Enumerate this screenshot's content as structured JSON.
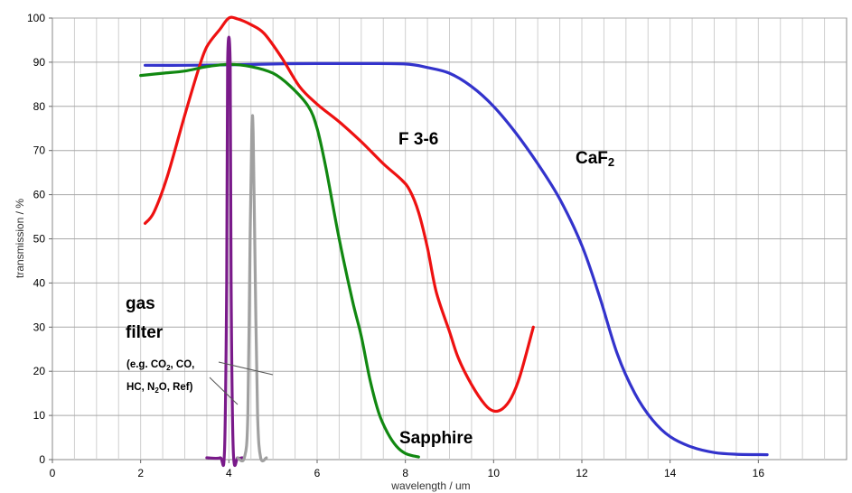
{
  "chart_data": {
    "type": "line",
    "xlabel": "wavelength / um",
    "ylabel": "transmission / %",
    "xlim": [
      0,
      18
    ],
    "ylim": [
      0,
      100
    ],
    "x_ticks": [
      0,
      2,
      4,
      6,
      8,
      10,
      12,
      14,
      16
    ],
    "y_ticks": [
      0,
      10,
      20,
      30,
      40,
      50,
      60,
      70,
      80,
      90,
      100
    ],
    "grid": true,
    "minor_x_grid": true,
    "legend": "none",
    "series": [
      {
        "name": "CaF2",
        "color": "#3333cc",
        "points": [
          [
            2.1,
            89.3
          ],
          [
            3,
            89.3
          ],
          [
            4,
            89.4
          ],
          [
            5,
            89.6
          ],
          [
            6,
            89.7
          ],
          [
            7,
            89.7
          ],
          [
            8,
            89.6
          ],
          [
            8.5,
            88.8
          ],
          [
            9,
            87.5
          ],
          [
            9.5,
            84.5
          ],
          [
            10,
            80
          ],
          [
            10.5,
            74
          ],
          [
            11,
            67
          ],
          [
            11.5,
            59
          ],
          [
            12,
            48.5
          ],
          [
            12.4,
            37
          ],
          [
            12.8,
            24
          ],
          [
            13.2,
            15
          ],
          [
            13.6,
            9
          ],
          [
            14,
            5.2
          ],
          [
            14.5,
            2.8
          ],
          [
            15,
            1.6
          ],
          [
            15.5,
            1.2
          ],
          [
            16.2,
            1.1
          ]
        ]
      },
      {
        "name": "F 3-6",
        "color": "#ee1111",
        "points": [
          [
            2.1,
            53.5
          ],
          [
            2.3,
            56
          ],
          [
            2.6,
            64
          ],
          [
            3,
            78
          ],
          [
            3.3,
            88
          ],
          [
            3.5,
            93.5
          ],
          [
            3.8,
            97.5
          ],
          [
            4,
            100
          ],
          [
            4.2,
            99.8
          ],
          [
            4.5,
            98.5
          ],
          [
            4.8,
            96.5
          ],
          [
            5.2,
            91
          ],
          [
            5.6,
            84.5
          ],
          [
            6,
            80.5
          ],
          [
            6.5,
            76.5
          ],
          [
            7,
            72
          ],
          [
            7.5,
            67
          ],
          [
            7.9,
            63.5
          ],
          [
            8.1,
            61
          ],
          [
            8.3,
            56
          ],
          [
            8.5,
            48
          ],
          [
            8.7,
            38
          ],
          [
            9,
            29
          ],
          [
            9.2,
            23
          ],
          [
            9.5,
            17
          ],
          [
            9.8,
            12.5
          ],
          [
            10,
            11
          ],
          [
            10.2,
            11.5
          ],
          [
            10.4,
            14
          ],
          [
            10.6,
            19
          ],
          [
            10.9,
            30
          ]
        ]
      },
      {
        "name": "Sapphire",
        "color": "#118811",
        "points": [
          [
            2,
            87
          ],
          [
            2.5,
            87.5
          ],
          [
            3,
            88
          ],
          [
            3.5,
            89
          ],
          [
            4,
            89.5
          ],
          [
            4.5,
            89
          ],
          [
            5,
            87.5
          ],
          [
            5.4,
            84.5
          ],
          [
            5.8,
            80
          ],
          [
            6,
            75
          ],
          [
            6.2,
            66
          ],
          [
            6.5,
            50
          ],
          [
            6.8,
            36
          ],
          [
            7,
            28
          ],
          [
            7.2,
            18
          ],
          [
            7.4,
            10.5
          ],
          [
            7.6,
            6
          ],
          [
            7.8,
            3
          ],
          [
            8,
            1.4
          ],
          [
            8.2,
            0.8
          ],
          [
            8.3,
            0.6
          ]
        ]
      },
      {
        "name": "gas filter purple",
        "color": "#7a1a8a",
        "points": [
          [
            3.5,
            0.4
          ],
          [
            3.8,
            0.4
          ],
          [
            3.9,
            2
          ],
          [
            3.95,
            40
          ],
          [
            3.97,
            89.5
          ],
          [
            4.03,
            89.5
          ],
          [
            4.05,
            40
          ],
          [
            4.1,
            2
          ],
          [
            4.2,
            0.4
          ],
          [
            4.3,
            0.4
          ]
        ]
      },
      {
        "name": "gas filter grey",
        "color": "#a0a0a0",
        "points": [
          [
            4.2,
            0.4
          ],
          [
            4.35,
            0.4
          ],
          [
            4.43,
            10
          ],
          [
            4.48,
            50
          ],
          [
            4.52,
            74.5
          ],
          [
            4.55,
            74
          ],
          [
            4.6,
            40
          ],
          [
            4.65,
            10
          ],
          [
            4.72,
            0.4
          ],
          [
            4.85,
            0.4
          ]
        ]
      }
    ],
    "annotations": {
      "caf2_main": "CaF",
      "caf2_sub": "2",
      "f36": "F 3-6",
      "sapphire": "Sapphire",
      "gas": "gas",
      "filter": "filter",
      "eg_a": "(e.g. CO",
      "eg_b": "2",
      "eg_c": ", CO,",
      "hc_a": "HC, N",
      "hc_b": "2",
      "hc_c": "O, Ref)"
    }
  }
}
